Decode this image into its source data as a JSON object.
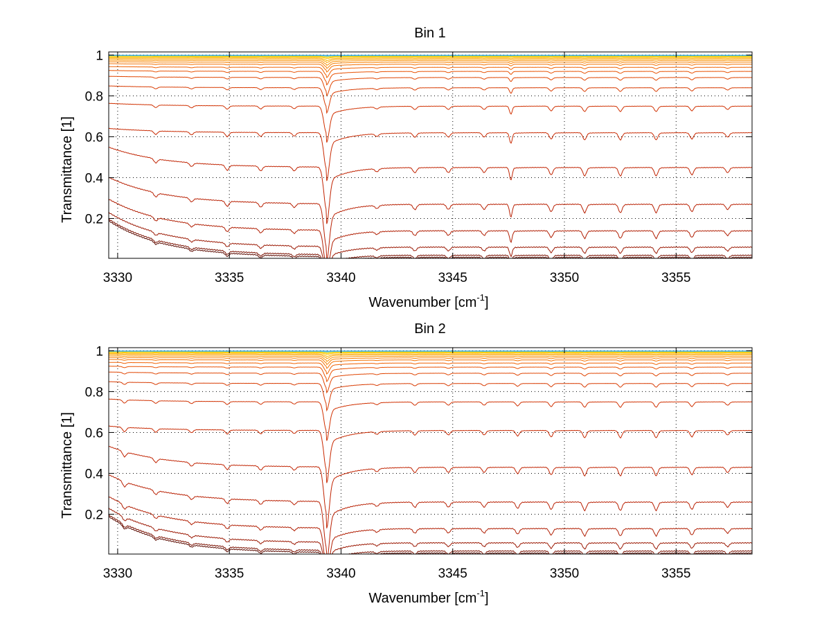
{
  "chart_data": [
    {
      "type": "line",
      "title": "Bin 1",
      "xlabel": "Wavenumber [cm",
      "xlabel_sup": "-1",
      "xlabel_end": "]",
      "ylabel": "Transmittance [1]",
      "xlim": [
        3329.6,
        3358.4
      ],
      "ylim": [
        0.005,
        1.015
      ],
      "xticks": [
        3330,
        3335,
        3340,
        3345,
        3350,
        3355
      ],
      "yticks": [
        0.2,
        0.4,
        0.6,
        0.8,
        1
      ],
      "xtick_labels": [
        "3330",
        "3335",
        "3340",
        "3345",
        "3350",
        "3355"
      ],
      "ytick_labels": [
        "0.2",
        "0.4",
        "0.6",
        "0.8",
        "1"
      ],
      "grid": true,
      "baselines": [
        0.01,
        0.02,
        0.06,
        0.14,
        0.27,
        0.45,
        0.62,
        0.75,
        0.84,
        0.89,
        0.92,
        0.94,
        0.955,
        0.965,
        0.973,
        0.98,
        0.985,
        0.99,
        0.993,
        0.995,
        0.997,
        0.999
      ],
      "series_colors": [
        "#5a0a00",
        "#7a1000",
        "#9a1600",
        "#b01c00",
        "#b81e00",
        "#c02200",
        "#c82800",
        "#d03000",
        "#d83a00",
        "#e04400",
        "#e85000",
        "#f06000",
        "#f47000",
        "#f88000",
        "#fa9000",
        "#fca000",
        "#feb000",
        "#ffc000",
        "#ffd000",
        "#e0e030",
        "#60c0e0",
        "#20a0e0"
      ],
      "lines": [
        {
          "center": 3331.7,
          "depth": 0.04,
          "width": 0.08
        },
        {
          "center": 3333.3,
          "depth": 0.035,
          "width": 0.08
        },
        {
          "center": 3334.9,
          "depth": 0.05,
          "width": 0.08
        },
        {
          "center": 3336.4,
          "depth": 0.045,
          "width": 0.08
        },
        {
          "center": 3337.9,
          "depth": 0.04,
          "width": 0.08
        },
        {
          "center": 3339.35,
          "depth": 0.42,
          "width": 0.12
        },
        {
          "center": 3341.6,
          "depth": 0.03,
          "width": 0.08
        },
        {
          "center": 3343.3,
          "depth": 0.05,
          "width": 0.08
        },
        {
          "center": 3344.8,
          "depth": 0.05,
          "width": 0.08
        },
        {
          "center": 3346.4,
          "depth": 0.05,
          "width": 0.08
        },
        {
          "center": 3347.6,
          "depth": 0.12,
          "width": 0.06
        },
        {
          "center": 3349.4,
          "depth": 0.07,
          "width": 0.08
        },
        {
          "center": 3350.9,
          "depth": 0.08,
          "width": 0.08
        },
        {
          "center": 3352.5,
          "depth": 0.08,
          "width": 0.08
        },
        {
          "center": 3354.1,
          "depth": 0.08,
          "width": 0.08
        },
        {
          "center": 3355.7,
          "depth": 0.07,
          "width": 0.08
        },
        {
          "center": 3357.3,
          "depth": 0.05,
          "width": 0.08
        }
      ]
    },
    {
      "type": "line",
      "title": "Bin 2",
      "xlabel": "Wavenumber [cm",
      "xlabel_sup": "-1",
      "xlabel_end": "]",
      "ylabel": "Transmittance [1]",
      "xlim": [
        3329.6,
        3358.4
      ],
      "ylim": [
        0.005,
        1.015
      ],
      "xticks": [
        3330,
        3335,
        3340,
        3345,
        3350,
        3355
      ],
      "yticks": [
        0.2,
        0.4,
        0.6,
        0.8,
        1
      ],
      "xtick_labels": [
        "3330",
        "3335",
        "3340",
        "3345",
        "3350",
        "3355"
      ],
      "ytick_labels": [
        "0.2",
        "0.4",
        "0.6",
        "0.8",
        "1"
      ],
      "grid": true,
      "baselines": [
        0.01,
        0.02,
        0.06,
        0.13,
        0.26,
        0.43,
        0.61,
        0.75,
        0.84,
        0.89,
        0.92,
        0.94,
        0.955,
        0.965,
        0.973,
        0.98,
        0.985,
        0.99,
        0.993,
        0.995,
        0.997,
        0.999
      ],
      "series_colors": [
        "#5a0a00",
        "#7a1000",
        "#9a1600",
        "#b01c00",
        "#b81e00",
        "#c02200",
        "#c82800",
        "#d03000",
        "#d83a00",
        "#e04400",
        "#e85000",
        "#f06000",
        "#f47000",
        "#f88000",
        "#fa9000",
        "#fca000",
        "#feb000",
        "#ffc000",
        "#ffd000",
        "#e0e030",
        "#60c0e0",
        "#20a0e0"
      ],
      "lines": [
        {
          "center": 3330.3,
          "depth": 0.05,
          "width": 0.08
        },
        {
          "center": 3331.7,
          "depth": 0.04,
          "width": 0.08
        },
        {
          "center": 3333.3,
          "depth": 0.035,
          "width": 0.08
        },
        {
          "center": 3334.9,
          "depth": 0.045,
          "width": 0.08
        },
        {
          "center": 3336.4,
          "depth": 0.04,
          "width": 0.08
        },
        {
          "center": 3337.9,
          "depth": 0.035,
          "width": 0.08
        },
        {
          "center": 3339.35,
          "depth": 0.45,
          "width": 0.12
        },
        {
          "center": 3341.6,
          "depth": 0.03,
          "width": 0.08
        },
        {
          "center": 3343.3,
          "depth": 0.05,
          "width": 0.08
        },
        {
          "center": 3344.8,
          "depth": 0.05,
          "width": 0.08
        },
        {
          "center": 3346.4,
          "depth": 0.05,
          "width": 0.08
        },
        {
          "center": 3347.9,
          "depth": 0.06,
          "width": 0.08
        },
        {
          "center": 3349.4,
          "depth": 0.07,
          "width": 0.08
        },
        {
          "center": 3350.9,
          "depth": 0.08,
          "width": 0.08
        },
        {
          "center": 3352.5,
          "depth": 0.08,
          "width": 0.08
        },
        {
          "center": 3354.1,
          "depth": 0.08,
          "width": 0.08
        },
        {
          "center": 3355.7,
          "depth": 0.07,
          "width": 0.08
        },
        {
          "center": 3357.3,
          "depth": 0.05,
          "width": 0.08
        }
      ]
    }
  ]
}
